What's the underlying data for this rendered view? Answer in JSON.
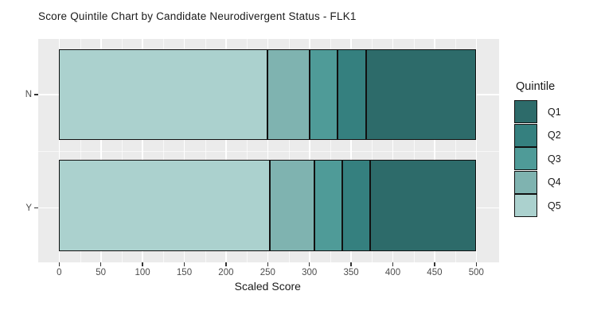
{
  "chart_data": {
    "type": "bar",
    "orientation": "horizontal-stacked",
    "title": "Score Quintile Chart by Candidate Neurodivergent Status - FLK1",
    "xlabel": "Scaled Score",
    "ylabel": "",
    "categories": [
      "N",
      "Y"
    ],
    "xlim": [
      0,
      500
    ],
    "x_ticks": [
      0,
      50,
      100,
      150,
      200,
      250,
      300,
      350,
      400,
      450,
      500
    ],
    "x_minor_ticks": [
      25,
      75,
      125,
      175,
      225,
      275,
      325,
      375,
      425,
      475
    ],
    "grid": true,
    "stack_order_left_to_right": [
      "Q5",
      "Q4",
      "Q3",
      "Q2",
      "Q1"
    ],
    "segment_boundaries": {
      "N": [
        0,
        250,
        300,
        334,
        368,
        500
      ],
      "Y": [
        0,
        253,
        306,
        339,
        373,
        500
      ]
    },
    "series": [
      {
        "name": "Q1",
        "color": "#2d6b6a",
        "values": [
          132,
          127
        ]
      },
      {
        "name": "Q2",
        "color": "#35807f",
        "values": [
          34,
          34
        ]
      },
      {
        "name": "Q3",
        "color": "#4f9b98",
        "values": [
          34,
          33
        ]
      },
      {
        "name": "Q4",
        "color": "#7fb3b0",
        "values": [
          50,
          53
        ]
      },
      {
        "name": "Q5",
        "color": "#abd1ce",
        "values": [
          250,
          253
        ]
      }
    ],
    "legend": {
      "title": "Quintile",
      "position": "right",
      "labels": [
        "Q1",
        "Q2",
        "Q3",
        "Q4",
        "Q5"
      ]
    }
  },
  "colors": {
    "panel_background": "#ebebeb",
    "bar_border": "#111111",
    "gridline": "#ffffff"
  }
}
